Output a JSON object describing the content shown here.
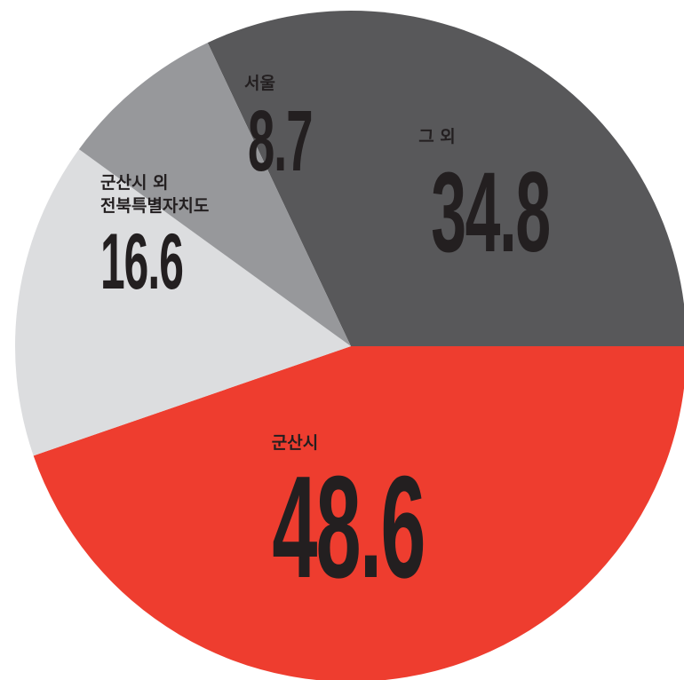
{
  "chart_data": {
    "type": "pie",
    "categories": [
      "그 외",
      "군산시",
      [
        "군산시 외",
        "전북특별자치도"
      ],
      "서울"
    ],
    "values": [
      34.8,
      48.6,
      16.6,
      8.7
    ],
    "colors": [
      "#58585a",
      "#ee3d2f",
      "#dcdddf",
      "#97989b"
    ]
  }
}
